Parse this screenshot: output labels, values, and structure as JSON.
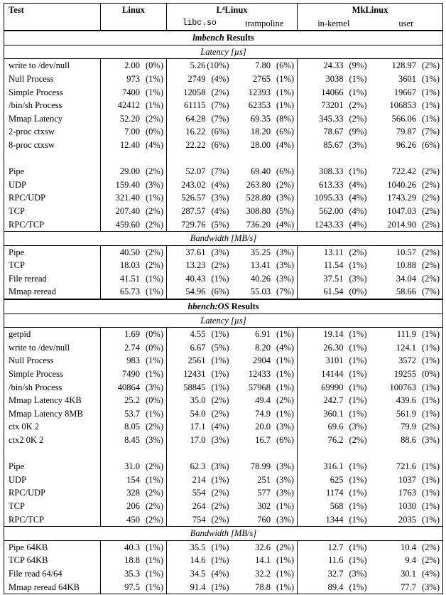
{
  "header": {
    "test": "Test",
    "linux": "Linux",
    "l4linux": "L⁴Linux",
    "l4_sub1": "libc.so",
    "l4_sub2": "trampoline",
    "mklinux": "MkLinux",
    "mk_sub1": "in-kernel",
    "mk_sub2": "user"
  },
  "sections": [
    {
      "title_italic": "lmbench",
      "title_rest": " Results",
      "groups": [
        {
          "subtitle": "Latency  [µs]",
          "rows": [
            [
              "write to /dev/null",
              "2.00",
              "(0%)",
              "5.26",
              "(10%)",
              "7.80",
              "(6%)",
              "24.33",
              "(9%)",
              "128.97",
              "(2%)"
            ],
            [
              "Null Process",
              "973",
              "(1%)",
              "2749",
              "(4%)",
              "2765",
              "(1%)",
              "3038",
              "(1%)",
              "3601",
              "(1%)"
            ],
            [
              "Simple Process",
              "7400",
              "(1%)",
              "12058",
              "(2%)",
              "12393",
              "(1%)",
              "14066",
              "(1%)",
              "19667",
              "(1%)"
            ],
            [
              "/bin/sh Process",
              "42412",
              "(1%)",
              "61115",
              "(7%)",
              "62353",
              "(1%)",
              "73201",
              "(2%)",
              "106853",
              "(1%)"
            ],
            [
              "Mmap Latency",
              "52.20",
              "(2%)",
              "64.28",
              "(7%)",
              "69.35",
              "(8%)",
              "345.33",
              "(2%)",
              "566.06",
              "(1%)"
            ],
            [
              "2-proc ctxsw",
              "7.00",
              "(0%)",
              "16.22",
              "(6%)",
              "18.20",
              "(6%)",
              "78.67",
              "(9%)",
              "79.87",
              "(7%)"
            ],
            [
              "8-proc ctxsw",
              "12.40",
              "(4%)",
              "22.22",
              "(6%)",
              "28.00",
              "(4%)",
              "85.67",
              "(3%)",
              "96.26",
              "(6%)"
            ],
            null,
            [
              "Pipe",
              "29.00",
              "(2%)",
              "52.07",
              "(7%)",
              "69.40",
              "(6%)",
              "308.33",
              "(1%)",
              "722.42",
              "(2%)"
            ],
            [
              "UDP",
              "159.40",
              "(3%)",
              "243.02",
              "(4%)",
              "263.80",
              "(2%)",
              "613.33",
              "(4%)",
              "1040.26",
              "(2%)"
            ],
            [
              "RPC/UDP",
              "321.40",
              "(1%)",
              "526.57",
              "(3%)",
              "528.80",
              "(3%)",
              "1095.33",
              "(4%)",
              "1743.29",
              "(2%)"
            ],
            [
              "TCP",
              "207.40",
              "(2%)",
              "287.57",
              "(4%)",
              "308.80",
              "(5%)",
              "562.00",
              "(4%)",
              "1047.03",
              "(2%)"
            ],
            [
              "RPC/TCP",
              "459.60",
              "(2%)",
              "729.76",
              "(5%)",
              "736.20",
              "(4%)",
              "1243.33",
              "(4%)",
              "2014.90",
              "(2%)"
            ]
          ]
        },
        {
          "subtitle": "Bandwidth  [MB/s]",
          "rows": [
            [
              "Pipe",
              "40.50",
              "(2%)",
              "37.61",
              "(3%)",
              "35.25",
              "(3%)",
              "13.11",
              "(2%)",
              "10.57",
              "(2%)"
            ],
            [
              "TCP",
              "18.03",
              "(2%)",
              "13.23",
              "(2%)",
              "13.41",
              "(3%)",
              "11.54",
              "(1%)",
              "10.88",
              "(2%)"
            ],
            [
              "File reread",
              "41.51",
              "(1%)",
              "40.43",
              "(1%)",
              "40.26",
              "(3%)",
              "37.51",
              "(3%)",
              "34.04",
              "(2%)"
            ],
            [
              "Mmap reread",
              "65.73",
              "(1%)",
              "54.96",
              "(6%)",
              "55.03",
              "(7%)",
              "61.54",
              "(0%)",
              "58.66",
              "(7%)"
            ]
          ]
        }
      ]
    },
    {
      "title_italic": "hbench:OS",
      "title_rest": " Results",
      "groups": [
        {
          "subtitle": "Latency  [µs]",
          "rows": [
            [
              "getpid",
              "1.69",
              "(0%)",
              "4.55",
              "(1%)",
              "6.91",
              "(1%)",
              "19.14",
              "(1%)",
              "111.9",
              "(1%)"
            ],
            [
              "write to /dev/null",
              "2.74",
              "(0%)",
              "6.67",
              "(5%)",
              "8.20",
              "(4%)",
              "26.30",
              "(1%)",
              "124.1",
              "(1%)"
            ],
            [
              "Null Process",
              "983",
              "(1%)",
              "2561",
              "(1%)",
              "2904",
              "(1%)",
              "3101",
              "(1%)",
              "3572",
              "(1%)"
            ],
            [
              "Simple Process",
              "7490",
              "(1%)",
              "12431",
              "(1%)",
              "12433",
              "(1%)",
              "14144",
              "(1%)",
              "19255",
              "(0%)"
            ],
            [
              "/bin/sh Process",
              "40864",
              "(3%)",
              "58845",
              "(1%)",
              "57968",
              "(1%)",
              "69990",
              "(1%)",
              "100763",
              "(1%)"
            ],
            [
              "Mmap Latency 4KB",
              "25.2",
              "(0%)",
              "35.0",
              "(2%)",
              "49.4",
              "(2%)",
              "242.7",
              "(1%)",
              "439.6",
              "(1%)"
            ],
            [
              "Mmap Latency 8MB",
              "53.7",
              "(1%)",
              "54.0",
              "(2%)",
              "74.9",
              "(1%)",
              "360.1",
              "(1%)",
              "561.9",
              "(1%)"
            ],
            [
              "ctx 0K 2",
              "8.05",
              "(2%)",
              "17.1",
              "(4%)",
              "20.0",
              "(3%)",
              "69.6",
              "(3%)",
              "79.9",
              "(2%)"
            ],
            [
              "ctx2 0K 2",
              "8.45",
              "(3%)",
              "17.0",
              "(3%)",
              "16.7",
              "(6%)",
              "76.2",
              "(2%)",
              "88.6",
              "(3%)"
            ],
            null,
            [
              "Pipe",
              "31.0",
              "(2%)",
              "62.3",
              "(3%)",
              "78.99",
              "(3%)",
              "316.1",
              "(1%)",
              "721.6",
              "(1%)"
            ],
            [
              "UDP",
              "154",
              "(1%)",
              "214",
              "(1%)",
              "251",
              "(3%)",
              "625",
              "(1%)",
              "1037",
              "(1%)"
            ],
            [
              "RPC/UDP",
              "328",
              "(2%)",
              "554",
              "(2%)",
              "577",
              "(3%)",
              "1174",
              "(1%)",
              "1763",
              "(1%)"
            ],
            [
              "TCP",
              "206",
              "(2%)",
              "264",
              "(2%)",
              "302",
              "(1%)",
              "568",
              "(1%)",
              "1030",
              "(1%)"
            ],
            [
              "RPC/TCP",
              "450",
              "(2%)",
              "754",
              "(2%)",
              "760",
              "(3%)",
              "1344",
              "(1%)",
              "2035",
              "(1%)"
            ]
          ]
        },
        {
          "subtitle": "Bandwidth  [MB/s]",
          "rows": [
            [
              "Pipe 64KB",
              "40.3",
              "(1%)",
              "35.5",
              "(1%)",
              "32.6",
              "(2%)",
              "12.7",
              "(1%)",
              "10.4",
              "(2%)"
            ],
            [
              "TCP 64KB",
              "18.8",
              "(1%)",
              "14.6",
              "(1%)",
              "14.1",
              "(1%)",
              "11.6",
              "(1%)",
              "9.4",
              "(2%)"
            ],
            [
              "File read 64/64",
              "35.3",
              "(1%)",
              "34.5",
              "(4%)",
              "32.2",
              "(1%)",
              "32.7",
              "(3%)",
              "30.1",
              "(4%)"
            ],
            [
              "Mmap reread 64KB",
              "97.5",
              "(1%)",
              "91.4",
              "(1%)",
              "78.8",
              "(1%)",
              "89.4",
              "(1%)",
              "77.7",
              "(3%)"
            ]
          ]
        }
      ]
    }
  ]
}
